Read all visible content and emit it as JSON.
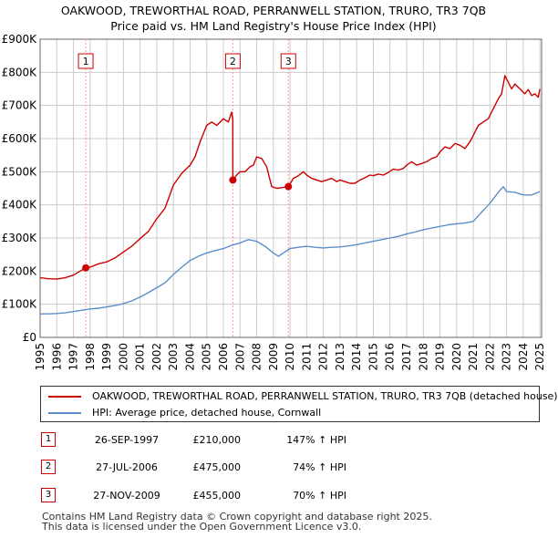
{
  "title": {
    "line1": "OAKWOOD, TREWORTHAL ROAD, PERRANWELL STATION, TRURO, TR3 7QB",
    "line2": "Price paid vs. HM Land Registry's House Price Index (HPI)"
  },
  "colors": {
    "property": "#cc0000",
    "hpi": "#5b8fc9",
    "grid": "#cccccc",
    "marker_line": "#ff9999",
    "axis": "#666666"
  },
  "chart_data": {
    "type": "line",
    "title": "Price paid vs. HM Land Registry's House Price Index (HPI)",
    "xlabel": "",
    "ylabel": "",
    "xlim": [
      1995.0,
      2025.1
    ],
    "ylim": [
      0,
      900000
    ],
    "grid": true,
    "y_ticks": [
      {
        "value": 0,
        "label": "£0"
      },
      {
        "value": 100000,
        "label": "£100K"
      },
      {
        "value": 200000,
        "label": "£200K"
      },
      {
        "value": 300000,
        "label": "£300K"
      },
      {
        "value": 400000,
        "label": "£400K"
      },
      {
        "value": 500000,
        "label": "£500K"
      },
      {
        "value": 600000,
        "label": "£600K"
      },
      {
        "value": 700000,
        "label": "£700K"
      },
      {
        "value": 800000,
        "label": "£800K"
      },
      {
        "value": 900000,
        "label": "£900K"
      }
    ],
    "x_ticks": [
      "1995",
      "1996",
      "1997",
      "1998",
      "1999",
      "2000",
      "2001",
      "2002",
      "2003",
      "2004",
      "2005",
      "2006",
      "2007",
      "2008",
      "2009",
      "2010",
      "2011",
      "2012",
      "2013",
      "2014",
      "2015",
      "2016",
      "2017",
      "2018",
      "2019",
      "2020",
      "2021",
      "2022",
      "2023",
      "2024",
      "2025"
    ],
    "series": [
      {
        "name": "OAKWOOD, TREWORTHAL ROAD, PERRANWELL STATION, TRURO, TR3 7QB (detached house)",
        "color": "#cc0000",
        "x": [
          1995.0,
          1995.5,
          1996.0,
          1996.5,
          1997.0,
          1997.4,
          1997.74,
          1998.0,
          1998.5,
          1999.0,
          1999.5,
          2000.0,
          2000.5,
          2001.0,
          2001.5,
          2002.0,
          2002.5,
          2003.0,
          2003.5,
          2004.0,
          2004.3,
          2004.6,
          2005.0,
          2005.3,
          2005.6,
          2006.0,
          2006.3,
          2006.5,
          2006.565,
          2006.57,
          2006.8,
          2007.0,
          2007.3,
          2007.6,
          2007.8,
          2008.0,
          2008.3,
          2008.6,
          2008.9,
          2009.2,
          2009.5,
          2009.9,
          2010.2,
          2010.5,
          2010.8,
          2011.0,
          2011.3,
          2011.6,
          2011.9,
          2012.2,
          2012.5,
          2012.8,
          2013.0,
          2013.3,
          2013.6,
          2013.9,
          2014.2,
          2014.5,
          2014.8,
          2015.0,
          2015.3,
          2015.6,
          2015.9,
          2016.2,
          2016.5,
          2016.8,
          2017.0,
          2017.3,
          2017.6,
          2017.9,
          2018.2,
          2018.5,
          2018.8,
          2019.0,
          2019.3,
          2019.6,
          2019.9,
          2020.2,
          2020.5,
          2020.8,
          2021.0,
          2021.3,
          2021.6,
          2021.9,
          2022.2,
          2022.5,
          2022.7,
          2022.9,
          2023.1,
          2023.3,
          2023.5,
          2023.7,
          2023.9,
          2024.1,
          2024.3,
          2024.5,
          2024.7,
          2024.9,
          2025.0
        ],
        "values": [
          180000,
          177000,
          176000,
          180000,
          188000,
          200000,
          210000,
          212000,
          222000,
          228000,
          240000,
          258000,
          275000,
          298000,
          320000,
          358000,
          390000,
          460000,
          495000,
          520000,
          545000,
          590000,
          640000,
          650000,
          640000,
          660000,
          650000,
          680000,
          660000,
          475000,
          490000,
          500000,
          500000,
          515000,
          520000,
          545000,
          540000,
          515000,
          455000,
          450000,
          452000,
          455000,
          480000,
          488000,
          500000,
          490000,
          480000,
          475000,
          470000,
          475000,
          480000,
          470000,
          475000,
          470000,
          465000,
          465000,
          475000,
          482000,
          490000,
          488000,
          493000,
          490000,
          498000,
          508000,
          505000,
          510000,
          520000,
          530000,
          520000,
          525000,
          530000,
          540000,
          545000,
          560000,
          575000,
          570000,
          585000,
          580000,
          570000,
          590000,
          610000,
          640000,
          650000,
          660000,
          690000,
          720000,
          735000,
          790000,
          770000,
          750000,
          765000,
          755000,
          745000,
          735000,
          748000,
          730000,
          735000,
          725000,
          750000
        ]
      },
      {
        "name": "HPI: Average price, detached house, Cornwall",
        "color": "#5b8fc9",
        "x": [
          1995.0,
          1995.5,
          1996.0,
          1996.5,
          1997.0,
          1997.5,
          1998.0,
          1998.5,
          1999.0,
          1999.5,
          2000.0,
          2000.5,
          2001.0,
          2001.5,
          2002.0,
          2002.5,
          2003.0,
          2003.5,
          2004.0,
          2004.5,
          2005.0,
          2005.5,
          2006.0,
          2006.5,
          2007.0,
          2007.5,
          2008.0,
          2008.5,
          2009.0,
          2009.3,
          2009.6,
          2010.0,
          2010.5,
          2011.0,
          2011.5,
          2012.0,
          2012.5,
          2013.0,
          2013.5,
          2014.0,
          2014.5,
          2015.0,
          2015.5,
          2016.0,
          2016.5,
          2017.0,
          2017.5,
          2018.0,
          2018.5,
          2019.0,
          2019.5,
          2020.0,
          2020.5,
          2021.0,
          2021.5,
          2022.0,
          2022.5,
          2022.8,
          2023.0,
          2023.5,
          2024.0,
          2024.5,
          2025.0
        ],
        "values": [
          71000,
          71000,
          72000,
          74000,
          78000,
          82000,
          86000,
          88000,
          92000,
          96000,
          102000,
          110000,
          122000,
          135000,
          150000,
          165000,
          190000,
          212000,
          232000,
          245000,
          255000,
          262000,
          268000,
          278000,
          285000,
          295000,
          290000,
          275000,
          255000,
          245000,
          255000,
          268000,
          272000,
          275000,
          272000,
          270000,
          272000,
          273000,
          276000,
          280000,
          285000,
          290000,
          295000,
          300000,
          305000,
          312000,
          318000,
          325000,
          330000,
          335000,
          340000,
          343000,
          345000,
          350000,
          378000,
          405000,
          438000,
          455000,
          440000,
          438000,
          430000,
          430000,
          440000
        ]
      }
    ],
    "sales": [
      {
        "label": "1",
        "x": 1997.74,
        "value": 210000
      },
      {
        "label": "2",
        "x": 2006.57,
        "value": 475000
      },
      {
        "label": "3",
        "x": 2009.9,
        "value": 455000
      }
    ]
  },
  "legend": {
    "property_label": "OAKWOOD, TREWORTHAL ROAD, PERRANWELL STATION, TRURO, TR3 7QB (detached house)",
    "hpi_label": "HPI: Average price, detached house, Cornwall"
  },
  "sales_table": [
    {
      "num": "1",
      "date": "26-SEP-1997",
      "price": "£210,000",
      "hpi": "147% ↑ HPI"
    },
    {
      "num": "2",
      "date": "27-JUL-2006",
      "price": "£475,000",
      "hpi": "74% ↑ HPI"
    },
    {
      "num": "3",
      "date": "27-NOV-2009",
      "price": "£455,000",
      "hpi": "70% ↑ HPI"
    }
  ],
  "footer": {
    "line1": "Contains HM Land Registry data © Crown copyright and database right 2025.",
    "line2": "This data is licensed under the Open Government Licence v3.0."
  }
}
